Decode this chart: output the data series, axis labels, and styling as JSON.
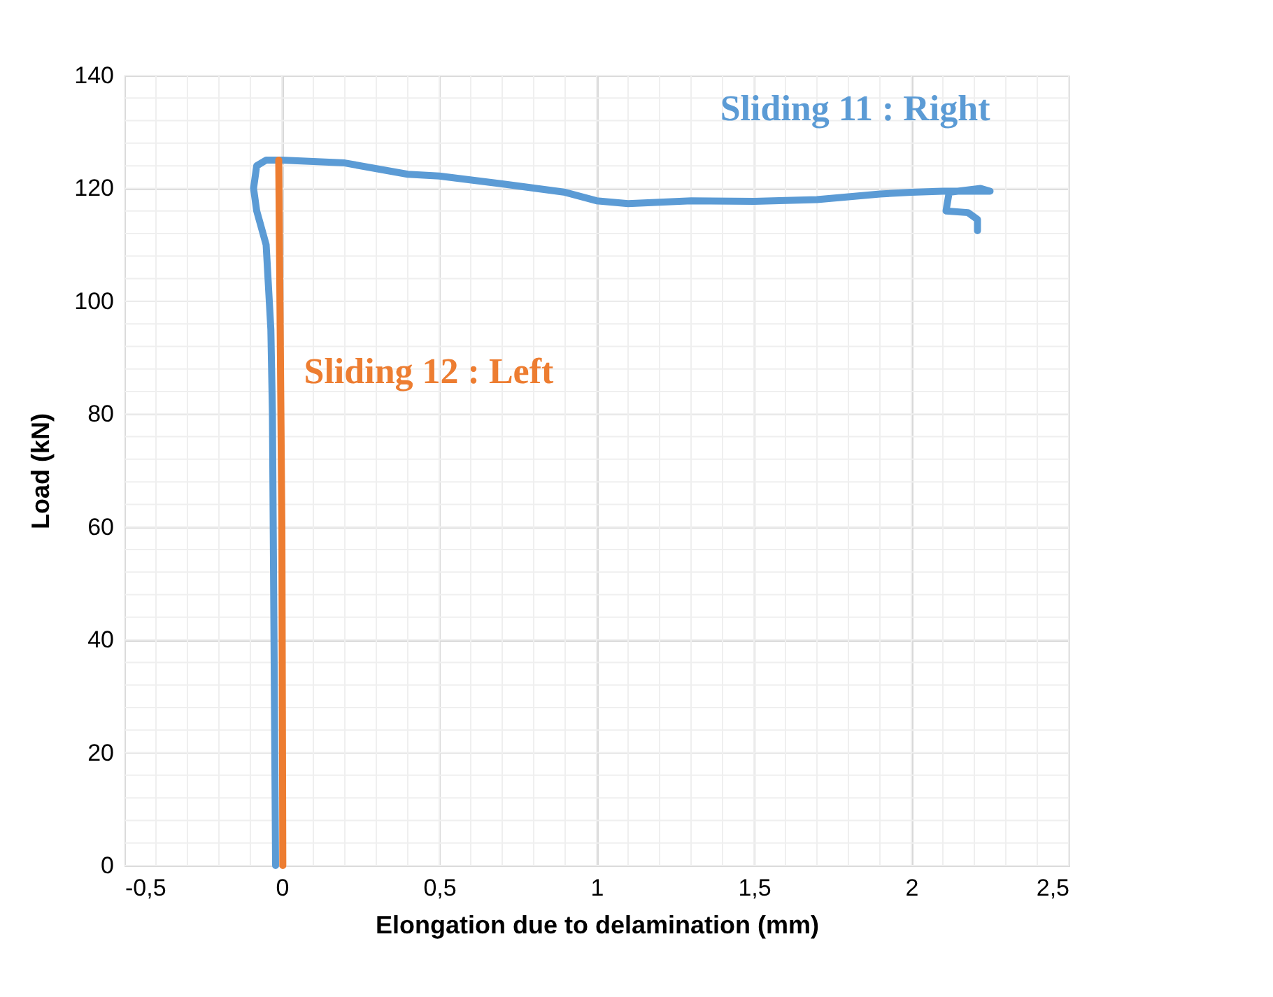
{
  "chart_data": {
    "type": "line",
    "xlabel": "Elongation due to delamination (mm)",
    "ylabel": "Load (kN)",
    "xlim": [
      -0.5,
      2.5
    ],
    "ylim": [
      0,
      140
    ],
    "xticks": [
      {
        "value": -0.5,
        "label": "-0,5"
      },
      {
        "value": 0,
        "label": "0"
      },
      {
        "value": 0.5,
        "label": "0,5"
      },
      {
        "value": 1,
        "label": "1"
      },
      {
        "value": 1.5,
        "label": "1,5"
      },
      {
        "value": 2,
        "label": "2"
      },
      {
        "value": 2.5,
        "label": "2,5"
      }
    ],
    "yticks": [
      0,
      20,
      40,
      60,
      80,
      100,
      120,
      140
    ],
    "grid": true,
    "legend": false,
    "marker": "none",
    "line_style": "solid",
    "series": [
      {
        "name": "Sliding 11 : Right",
        "color": "#5b9bd5",
        "x": [
          -0.02,
          -0.025,
          -0.03,
          -0.035,
          -0.04,
          -0.05,
          -0.08,
          -0.09,
          -0.08,
          -0.05,
          0,
          0.2,
          0.4,
          0.5,
          0.7,
          0.9,
          1.0,
          1.1,
          1.3,
          1.5,
          1.7,
          1.8,
          1.9,
          2.0,
          2.1,
          2.2,
          2.25,
          2.22,
          2.12,
          2.11,
          2.18,
          2.21,
          2.21
        ],
        "values": [
          0,
          40,
          80,
          95,
          100,
          110,
          116,
          120,
          124,
          125,
          125,
          124.5,
          122.5,
          122.2,
          120.8,
          119.3,
          117.8,
          117.3,
          117.8,
          117.7,
          118,
          118.5,
          119,
          119.3,
          119.5,
          119.5,
          119.5,
          120,
          119.3,
          116,
          115.7,
          114.5,
          112.5
        ]
      },
      {
        "name": "Sliding 12 : Left",
        "color": "#ed7d31",
        "x": [
          0.003,
          0.0,
          -0.01
        ],
        "values": [
          0,
          60,
          125
        ]
      }
    ]
  }
}
